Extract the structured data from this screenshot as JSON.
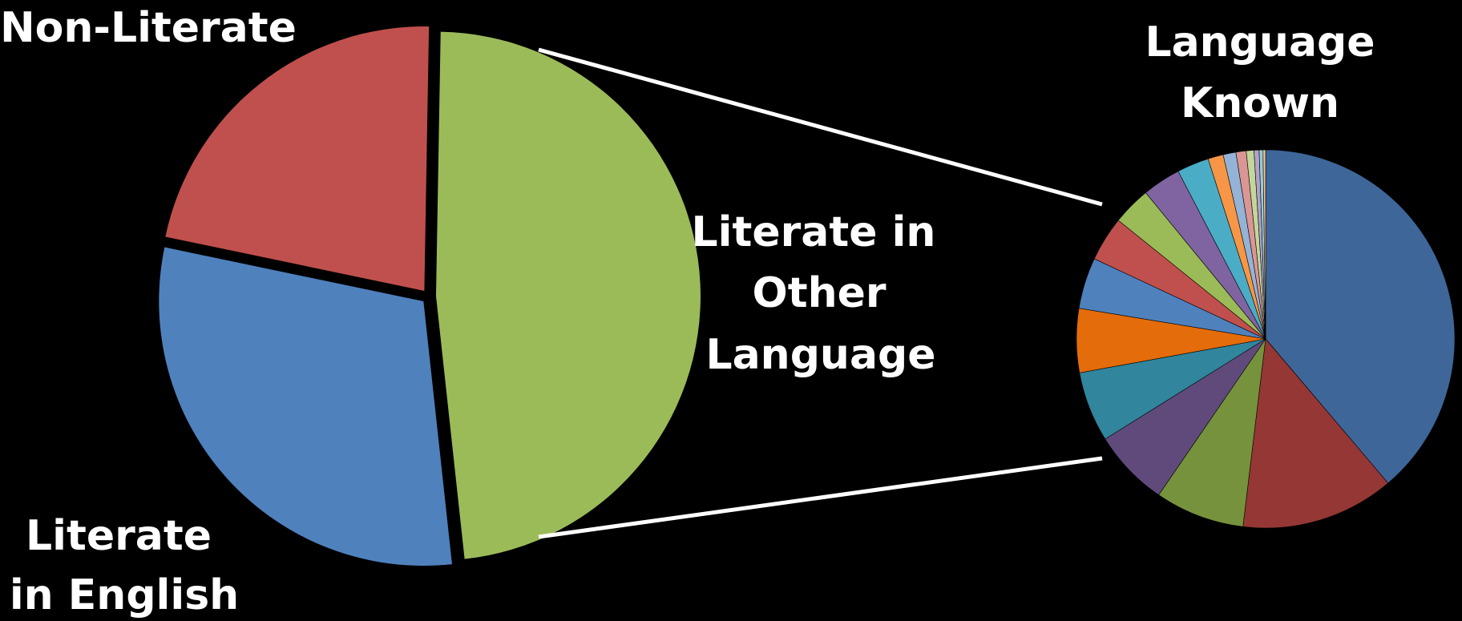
{
  "chart_data": [
    {
      "type": "pie",
      "categories": [
        "Literate in Other Language",
        "Literate in English",
        "Non-Literate"
      ],
      "values": [
        48,
        30,
        22
      ],
      "colors": [
        "#9BBB59",
        "#4F81BD",
        "#C0504D"
      ],
      "labels": {
        "non_literate": [
          "Non-Literate"
        ],
        "literate_english": [
          "Literate",
          "in English"
        ],
        "literate_other": [
          "Literate in",
          "Other",
          "Language"
        ]
      }
    },
    {
      "type": "pie",
      "title": [
        "Language",
        "Known"
      ],
      "values": [
        35.5,
        12,
        7,
        6,
        5.5,
        5,
        4,
        3.5,
        3,
        3,
        2.5,
        1.2,
        1.0,
        0.8,
        0.6,
        0.4,
        0.3,
        0.2
      ],
      "colors": [
        "#3E6699",
        "#953735",
        "#76923C",
        "#604A7B",
        "#31859C",
        "#E46C0A",
        "#4F81BD",
        "#C0504D",
        "#9BBB59",
        "#8064A2",
        "#4BACC6",
        "#F79646",
        "#95B3D7",
        "#D99694",
        "#C3D69B",
        "#B3A2C7",
        "#93CDDD",
        "#FAC090"
      ]
    }
  ]
}
